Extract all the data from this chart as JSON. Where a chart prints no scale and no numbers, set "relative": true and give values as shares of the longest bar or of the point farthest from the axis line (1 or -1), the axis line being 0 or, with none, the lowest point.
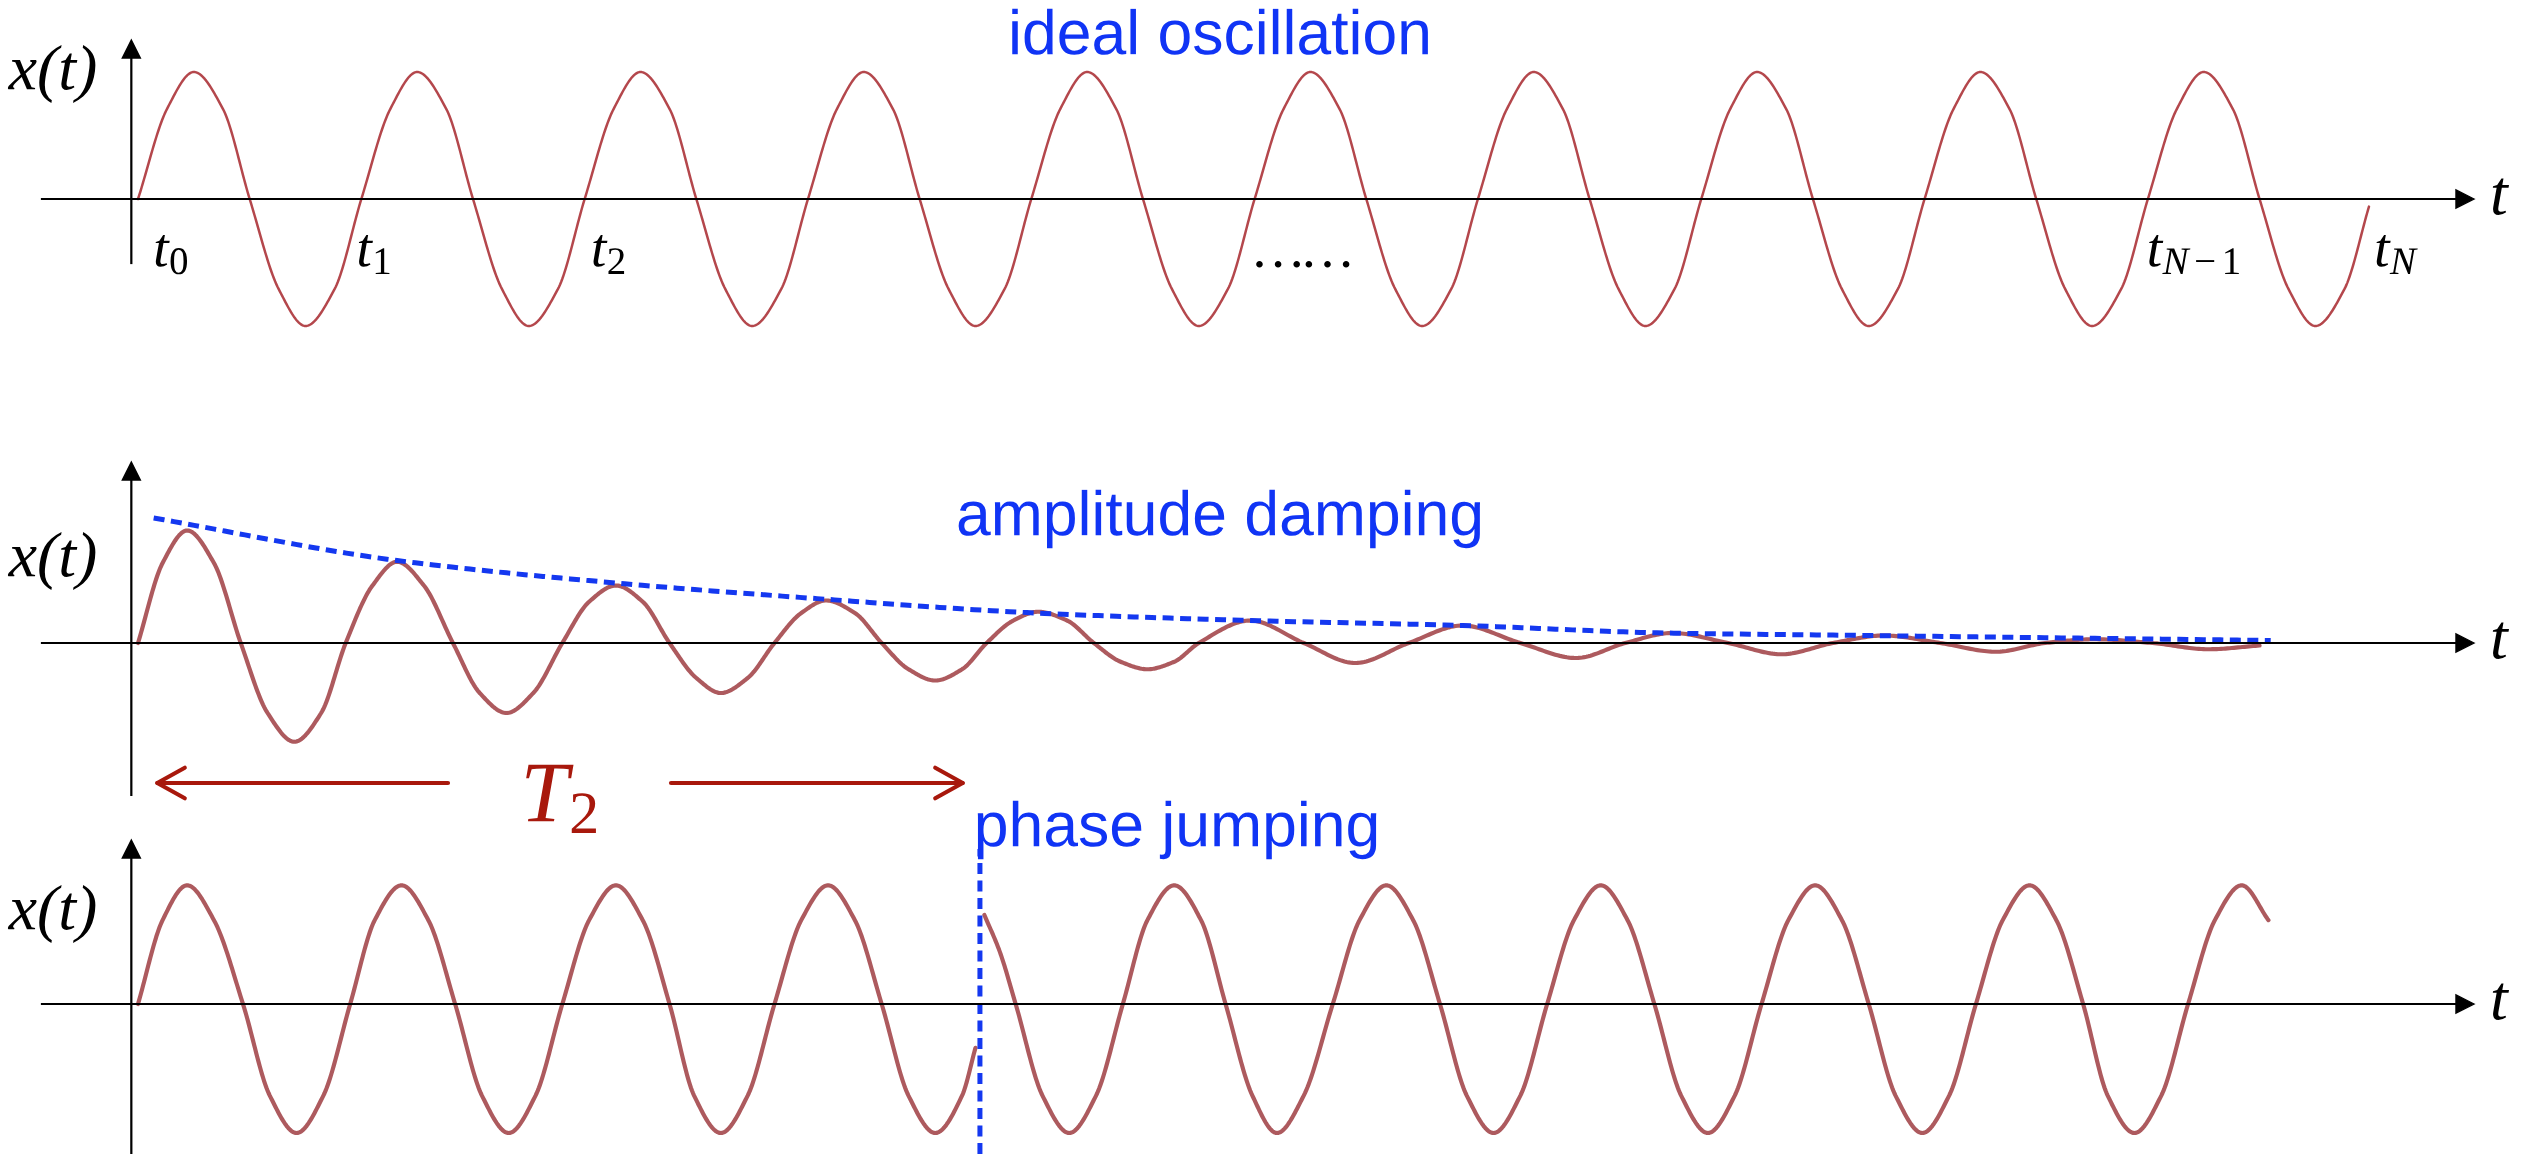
{
  "chart_data": [
    {
      "type": "line",
      "title": "ideal oscillation",
      "ylabel": "x(t)",
      "xlabel": "t",
      "relative": true,
      "tick_labels": "x",
      "xlim": [
        -0.4,
        10.45
      ],
      "xticks": [
        {
          "value": 0.18,
          "label": "t$_{0}$"
        },
        {
          "value": 1.09,
          "label": "t$_{1}$"
        },
        {
          "value": 2.14,
          "label": "t$_{2}$"
        },
        {
          "value": 5.25,
          "label": "……"
        },
        {
          "value": 9.24,
          "label": "t$_{N−1}$"
        },
        {
          "value": 10.14,
          "label": "t$_{N}$"
        }
      ],
      "series": [
        {
          "color": "#b4474c",
          "x": [
            0.03,
            0.16,
            0.28,
            0.41,
            0.53,
            0.66,
            0.78,
            0.91,
            1.03,
            1.16,
            1.28,
            1.41,
            1.53,
            1.66,
            1.78,
            1.91,
            2.03,
            2.16,
            2.28,
            2.41,
            2.53,
            2.66,
            2.78,
            2.91,
            3.03,
            3.16,
            3.28,
            3.41,
            3.53,
            3.66,
            3.78,
            3.91,
            4.03,
            4.16,
            4.28,
            4.41,
            4.53,
            4.66,
            4.78,
            4.91,
            5.03,
            5.16,
            5.28,
            5.41,
            5.53,
            5.66,
            5.78,
            5.91,
            6.03,
            6.16,
            6.28,
            6.41,
            6.53,
            6.66,
            6.78,
            6.91,
            7.03,
            7.16,
            7.28,
            7.41,
            7.53,
            7.66,
            7.78,
            7.91,
            8.03,
            8.16,
            8.28,
            8.41,
            8.53,
            8.66,
            8.78,
            8.91,
            9.03,
            9.16,
            9.28,
            9.41,
            9.53,
            9.66,
            9.78,
            9.91,
            10.02
          ],
          "values": [
            0,
            0.71,
            1,
            0.71,
            0,
            -0.71,
            -1,
            -0.71,
            0,
            0.71,
            1,
            0.71,
            0,
            -0.71,
            -1,
            -0.71,
            0,
            0.71,
            1,
            0.71,
            0,
            -0.71,
            -1,
            -0.71,
            0,
            0.71,
            1,
            0.71,
            0,
            -0.71,
            -1,
            -0.71,
            0,
            0.71,
            1,
            0.71,
            0,
            -0.71,
            -1,
            -0.71,
            0,
            0.71,
            1,
            0.71,
            0,
            -0.71,
            -1,
            -0.71,
            0,
            0.71,
            1,
            0.71,
            0,
            -0.71,
            -1,
            -0.71,
            0,
            0.71,
            1,
            0.71,
            0,
            -0.71,
            -1,
            -0.71,
            0,
            0.71,
            1,
            0.71,
            0,
            -0.71,
            -1,
            -0.71,
            0,
            0.71,
            1,
            0.71,
            0,
            -0.71,
            -1,
            -0.71,
            -0.06
          ]
        }
      ]
    },
    {
      "type": "line",
      "title": "amplitude damping",
      "ylabel": "x(t)",
      "xlabel": "t",
      "relative": true,
      "tick_labels": false,
      "xlim": [
        -0.4,
        10.45
      ],
      "series": [
        {
          "color": "#ad5a5e",
          "x": [
            0.03,
            0.14,
            0.25,
            0.37,
            0.49,
            0.61,
            0.73,
            0.85,
            0.96,
            1.08,
            1.19,
            1.31,
            1.44,
            1.56,
            1.68,
            1.8,
            1.93,
            2.05,
            2.17,
            2.29,
            2.41,
            2.53,
            2.64,
            2.76,
            2.88,
            3.0,
            3.11,
            3.24,
            3.36,
            3.48,
            3.6,
            3.72,
            3.83,
            3.95,
            4.06,
            4.19,
            4.31,
            4.43,
            4.55,
            4.67,
            4.78,
            5.01,
            5.25,
            5.48,
            5.72,
            5.96,
            6.22,
            6.47,
            6.69,
            6.9,
            7.15,
            7.39,
            7.62,
            7.85,
            8.1,
            8.35,
            8.57,
            8.79,
            9.05,
            9.3,
            9.53
          ],
          "values": [
            0,
            0.64,
            0.9,
            0.64,
            0,
            -0.56,
            -0.79,
            -0.56,
            0,
            0.46,
            0.65,
            0.46,
            0,
            -0.4,
            -0.56,
            -0.4,
            0,
            0.33,
            0.46,
            0.33,
            0,
            -0.28,
            -0.4,
            -0.28,
            0,
            0.24,
            0.34,
            0.24,
            0,
            -0.21,
            -0.3,
            -0.21,
            0,
            0.18,
            0.25,
            0.18,
            0,
            -0.15,
            -0.21,
            -0.15,
            0,
            0.18,
            0,
            -0.16,
            0,
            0.14,
            0,
            -0.12,
            0,
            0.08,
            0,
            -0.09,
            0,
            0.06,
            0,
            -0.07,
            0,
            0.03,
            0,
            -0.05,
            -0.02
          ]
        },
        {
          "color": "#1438f0",
          "line_style": "dashed",
          "x": [
            0.1,
            1.19,
            2.17,
            3.11,
            4.05,
            5.01,
            5.96,
            6.87,
            7.77,
            8.68,
            9.58
          ],
          "values": [
            1.0,
            0.66,
            0.48,
            0.35,
            0.24,
            0.18,
            0.14,
            0.08,
            0.06,
            0.04,
            0.02
          ]
        }
      ],
      "annotations": [
        "T$_{2}$"
      ]
    },
    {
      "type": "line",
      "title": "phase jumping",
      "ylabel": "x(t)",
      "xlabel": "t",
      "relative": true,
      "tick_labels": false,
      "xlim": [
        -0.4,
        10.45
      ],
      "series": [
        {
          "color": "#ad5a5e",
          "x": [
            0.03,
            0.14,
            0.25,
            0.37,
            0.5,
            0.62,
            0.74,
            0.86,
            0.98,
            1.09,
            1.21,
            1.33,
            1.45,
            1.57,
            1.69,
            1.81,
            1.93,
            2.05,
            2.17,
            2.29,
            2.41,
            2.52,
            2.64,
            2.76,
            2.88,
            3.0,
            3.12,
            3.24,
            3.36,
            3.48,
            3.6,
            3.72,
            3.78,
            3.8,
            3.82,
            3.89,
            3.96,
            4.08,
            4.2,
            4.32,
            4.44,
            4.55,
            4.67,
            4.79,
            4.9,
            5.02,
            5.13,
            5.25,
            5.38,
            5.5,
            5.62,
            5.74,
            5.86,
            5.98,
            6.1,
            6.22,
            6.34,
            6.46,
            6.58,
            6.7,
            6.82,
            6.94,
            7.06,
            7.18,
            7.3,
            7.42,
            7.54,
            7.66,
            7.78,
            7.9,
            8.02,
            8.14,
            8.26,
            8.38,
            8.5,
            8.62,
            8.74,
            8.85,
            8.97,
            9.09,
            9.21,
            9.33,
            9.45,
            9.57
          ],
          "values": [
            0,
            0.65,
            0.92,
            0.65,
            0,
            -0.71,
            -1,
            -0.71,
            0,
            0.65,
            0.92,
            0.65,
            0,
            -0.71,
            -1,
            -0.71,
            0,
            0.65,
            0.92,
            0.65,
            0,
            -0.71,
            -1,
            -0.71,
            0,
            0.65,
            0.92,
            0.65,
            0,
            -0.71,
            -1,
            -0.71,
            -0.34,
            null,
            0.69,
            0.4,
            0,
            -0.71,
            -1,
            -0.71,
            0,
            0.65,
            0.92,
            0.65,
            0,
            -0.71,
            -1,
            -0.71,
            0,
            0.65,
            0.92,
            0.65,
            0,
            -0.71,
            -1,
            -0.71,
            0,
            0.65,
            0.92,
            0.65,
            0,
            -0.71,
            -1,
            -0.71,
            0,
            0.65,
            0.92,
            0.65,
            0,
            -0.71,
            -1,
            -0.71,
            0,
            0.65,
            0.92,
            0.65,
            0,
            -0.71,
            -1,
            -0.71,
            0,
            0.65,
            0.92,
            0.65
          ]
        }
      ],
      "ref_lines": [
        {
          "axis": "x",
          "value": 3.8,
          "color": "#1438f0",
          "line_style": "dashed"
        }
      ]
    }
  ]
}
